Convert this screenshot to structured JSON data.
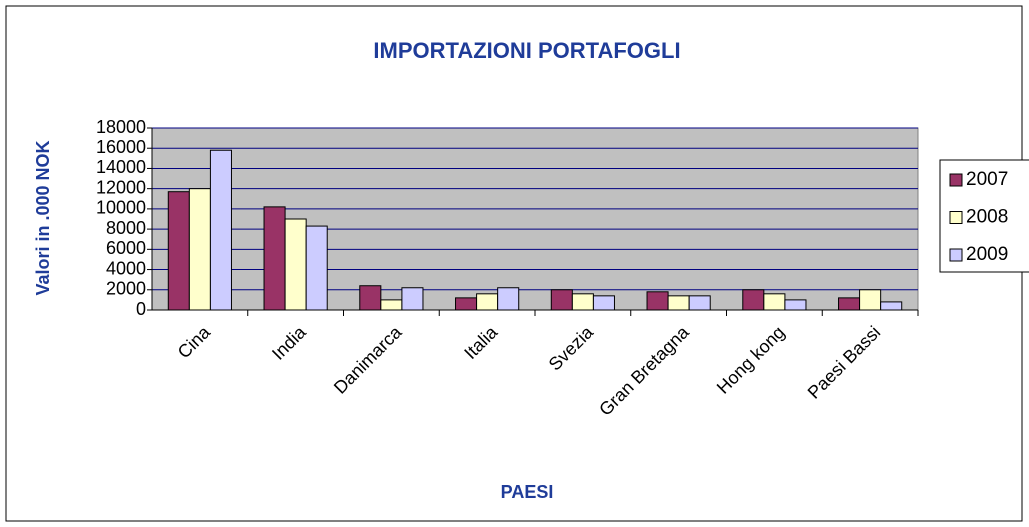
{
  "chart_data": {
    "type": "bar",
    "title": "IMPORTAZIONI PORTAFOGLI",
    "x_label": "PAESI",
    "y_label": "Valori in .000 NOK",
    "categories": [
      "Cina",
      "India",
      "Danimarca",
      "Italia",
      "Svezia",
      "Gran Bretagna",
      "Hong kong",
      "Paesi Bassi"
    ],
    "series": [
      {
        "name": "2007",
        "color": "#993366",
        "values": [
          11700,
          10200,
          2400,
          1200,
          2000,
          1800,
          2000,
          1200
        ]
      },
      {
        "name": "2008",
        "color": "#ffffcc",
        "values": [
          12000,
          9000,
          1000,
          1600,
          1600,
          1400,
          1600,
          2000
        ]
      },
      {
        "name": "2009",
        "color": "#ccccff",
        "values": [
          15800,
          8300,
          2200,
          2200,
          1400,
          1400,
          1000,
          800
        ]
      }
    ],
    "ylim": [
      0,
      18000
    ],
    "yticks": [
      0,
      2000,
      4000,
      6000,
      8000,
      10000,
      12000,
      14000,
      16000,
      18000
    ],
    "grid": true,
    "legend": "right"
  }
}
